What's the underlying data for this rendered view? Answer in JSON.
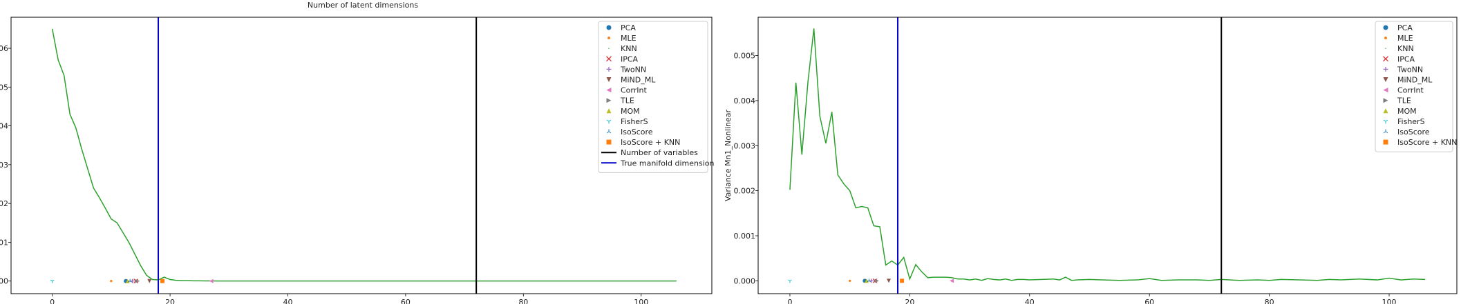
{
  "figure": {
    "title": "Number of latent dimensions"
  },
  "chart_data": [
    {
      "type": "line",
      "title": "",
      "xlabel": "",
      "ylabel": "",
      "xlim": [
        -7,
        112
      ],
      "ylim": [
        -0.00325,
        0.068
      ],
      "xticks": [
        0,
        20,
        40,
        60,
        80,
        100
      ],
      "xtick_labels": [
        "0",
        "20",
        "40",
        "60",
        "80",
        "100"
      ],
      "yticks": [
        0,
        0.01,
        0.02,
        0.03,
        0.04,
        0.05,
        0.06
      ],
      "ytick_labels": [
        "00",
        "01",
        "02",
        "03",
        "04",
        "05",
        "06"
      ],
      "grid": false,
      "legend_position": "top-right",
      "series": [
        {
          "color": "#2ca02c",
          "x": [
            0,
            1,
            2,
            3,
            4,
            5,
            6,
            7,
            8,
            9,
            10,
            11,
            12,
            13,
            14,
            15,
            16,
            17,
            18,
            19,
            20,
            21,
            22,
            23,
            24,
            25,
            26,
            27,
            28,
            29,
            30,
            32,
            34,
            36,
            38,
            40,
            45,
            50,
            55,
            60,
            65,
            70,
            75,
            80,
            85,
            90,
            95,
            100,
            106
          ],
          "y": [
            0.065,
            0.057,
            0.053,
            0.043,
            0.0395,
            0.034,
            0.029,
            0.024,
            0.0215,
            0.0188,
            0.016,
            0.015,
            0.0125,
            0.01,
            0.007,
            0.004,
            0.0015,
            0.0004,
            0.0003,
            0.001,
            0.0004,
            0.0002,
            0.0001,
            0.0001,
            5e-05,
            5e-05,
            3e-05,
            3e-05,
            2e-05,
            2e-05,
            2e-05,
            2e-05,
            2e-05,
            1e-05,
            1e-05,
            1e-05,
            1e-05,
            1e-05,
            1e-05,
            1e-05,
            1e-05,
            1e-05,
            1e-05,
            1e-05,
            1e-05,
            1e-05,
            1e-05,
            1e-05,
            1e-05
          ]
        }
      ],
      "estimators": [
        {
          "name": "PCA",
          "x": 12.5,
          "y": 0,
          "marker": "circle",
          "color": "#1f77b4"
        },
        {
          "name": "MLE",
          "x": 10,
          "y": 0,
          "marker": "point",
          "color": "#ff7f0e"
        },
        {
          "name": "KNN",
          "x": 13,
          "y": 0,
          "marker": "pixel",
          "color": "#2ca02c"
        },
        {
          "name": "IPCA",
          "x": 14.2,
          "y": 0,
          "marker": "x",
          "color": "#d62728"
        },
        {
          "name": "TwoNN",
          "x": 13.6,
          "y": 0,
          "marker": "plus",
          "color": "#9467bd"
        },
        {
          "name": "MiND_ML",
          "x": 16.5,
          "y": 0,
          "marker": "triangle-down",
          "color": "#8c564b"
        },
        {
          "name": "CorrInt",
          "x": 27,
          "y": 0,
          "marker": "triangle-left",
          "color": "#e377c2"
        },
        {
          "name": "TLE",
          "x": 14.5,
          "y": 0,
          "marker": "triangle-right",
          "color": "#7f7f7f"
        },
        {
          "name": "MOM",
          "x": 12.8,
          "y": 0,
          "marker": "triangle-up",
          "color": "#bcbd22"
        },
        {
          "name": "FisherS",
          "x": 0,
          "y": 0,
          "marker": "tri-down",
          "color": "#17becf"
        },
        {
          "name": "IsoScore",
          "x": 13.2,
          "y": 0,
          "marker": "tri-up",
          "color": "#1f77b4"
        },
        {
          "name": "IsoScore + KNN",
          "x": 18.7,
          "y": 0,
          "marker": "square",
          "color": "#ff7f0e"
        }
      ],
      "vlines": [
        {
          "name": "Number of variables",
          "x": 72,
          "color": "#000000"
        },
        {
          "name": "True manifold dimension",
          "x": 18,
          "color": "#0000cc"
        }
      ]
    },
    {
      "type": "line",
      "title": "",
      "xlabel": "",
      "ylabel": "Variance Mn1_Nonlinear",
      "xlim": [
        -5.3,
        111.3
      ],
      "ylim": [
        -0.000285,
        0.00585
      ],
      "xticks": [
        0,
        20,
        40,
        60,
        80,
        100
      ],
      "xtick_labels": [
        "0",
        "20",
        "40",
        "60",
        "80",
        "100"
      ],
      "yticks": [
        0,
        0.001,
        0.002,
        0.003,
        0.004,
        0.005
      ],
      "ytick_labels": [
        "0.000",
        "0.001",
        "0.002",
        "0.003",
        "0.004",
        "0.005"
      ],
      "grid": false,
      "legend_position": "top-right",
      "series": [
        {
          "color": "#2ca02c",
          "x": [
            0,
            1,
            2,
            3,
            4,
            5,
            6,
            7,
            8,
            9,
            10,
            11,
            12,
            13,
            14,
            15,
            16,
            17,
            18,
            19,
            20,
            21,
            22,
            23,
            24,
            25,
            26,
            27,
            28,
            29,
            30,
            31,
            32,
            33,
            34,
            35,
            36,
            37,
            38,
            39,
            40,
            42,
            44,
            45,
            46,
            47,
            48,
            50,
            52,
            55,
            58,
            60,
            62,
            65,
            68,
            70,
            72,
            75,
            78,
            80,
            82,
            85,
            88,
            90,
            92,
            95,
            98,
            100,
            102,
            104,
            106
          ],
          "y": [
            0.00202,
            0.0044,
            0.0028,
            0.0044,
            0.0056,
            0.00365,
            0.00305,
            0.00375,
            0.00235,
            0.00215,
            0.002,
            0.00162,
            0.00165,
            0.00162,
            0.00122,
            0.0012,
            0.00035,
            0.00044,
            0.00035,
            0.00052,
            4e-05,
            0.00036,
            0.0002,
            7e-05,
            8e-05,
            8e-05,
            8e-05,
            7e-05,
            4e-05,
            4e-05,
            2e-05,
            4e-05,
            1e-05,
            5e-05,
            3e-05,
            2e-05,
            4e-05,
            1e-05,
            3e-05,
            3e-05,
            2e-05,
            3e-05,
            4e-05,
            2e-05,
            8e-05,
            1e-05,
            2e-05,
            3e-05,
            2e-05,
            1e-05,
            2e-05,
            5e-05,
            1e-05,
            2e-05,
            2e-05,
            1e-05,
            3e-05,
            1e-05,
            2e-05,
            1e-05,
            3e-05,
            2e-05,
            1e-05,
            3e-05,
            2e-05,
            4e-05,
            2e-05,
            6e-05,
            2e-05,
            4e-05,
            3e-05
          ]
        }
      ],
      "estimators": [
        {
          "name": "PCA",
          "x": 12.5,
          "y": 0,
          "marker": "circle",
          "color": "#1f77b4"
        },
        {
          "name": "MLE",
          "x": 10,
          "y": 0,
          "marker": "point",
          "color": "#ff7f0e"
        },
        {
          "name": "KNN",
          "x": 13,
          "y": 0,
          "marker": "pixel",
          "color": "#2ca02c"
        },
        {
          "name": "IPCA",
          "x": 14.2,
          "y": 0,
          "marker": "x",
          "color": "#d62728"
        },
        {
          "name": "TwoNN",
          "x": 13.6,
          "y": 0,
          "marker": "plus",
          "color": "#9467bd"
        },
        {
          "name": "MiND_ML",
          "x": 16.5,
          "y": 0,
          "marker": "triangle-down",
          "color": "#8c564b"
        },
        {
          "name": "CorrInt",
          "x": 27,
          "y": 0,
          "marker": "triangle-left",
          "color": "#e377c2"
        },
        {
          "name": "TLE",
          "x": 14.5,
          "y": 0,
          "marker": "triangle-right",
          "color": "#7f7f7f"
        },
        {
          "name": "MOM",
          "x": 12.8,
          "y": 0,
          "marker": "triangle-up",
          "color": "#bcbd22"
        },
        {
          "name": "FisherS",
          "x": 0,
          "y": 0,
          "marker": "tri-down",
          "color": "#17becf"
        },
        {
          "name": "IsoScore",
          "x": 13.2,
          "y": 0,
          "marker": "tri-up",
          "color": "#1f77b4"
        },
        {
          "name": "IsoScore + KNN",
          "x": 18.7,
          "y": 0,
          "marker": "square",
          "color": "#ff7f0e"
        }
      ],
      "vlines": [
        {
          "name": "",
          "x": 72,
          "color": "#000000"
        },
        {
          "name": "",
          "x": 18,
          "color": "#0000cc"
        }
      ]
    }
  ]
}
